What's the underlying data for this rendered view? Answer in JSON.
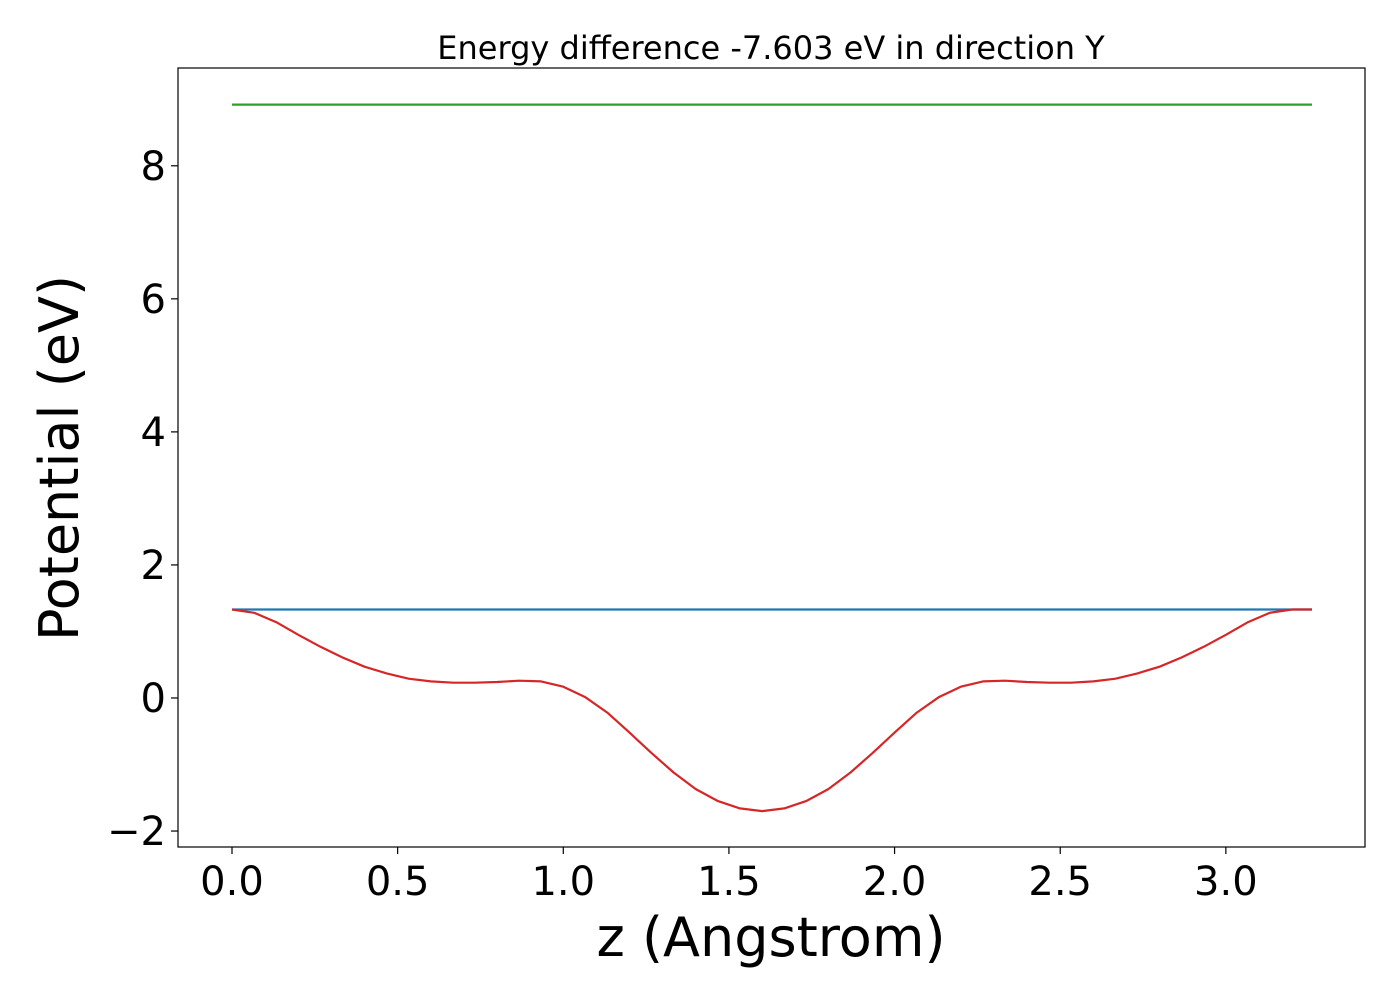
{
  "chart_data": {
    "type": "line",
    "title": "Energy difference -7.603 eV in direction Y",
    "xlabel": "z (Angstrom)",
    "ylabel": "Potential (eV)",
    "xlim": [
      -0.163,
      3.42
    ],
    "ylim": [
      -2.24,
      9.47
    ],
    "x_ticks": [
      0.0,
      0.5,
      1.0,
      1.5,
      2.0,
      2.5,
      3.0
    ],
    "x_tick_labels": [
      "0.0",
      "0.5",
      "1.0",
      "1.5",
      "2.0",
      "2.5",
      "3.0"
    ],
    "y_ticks": [
      -2,
      0,
      2,
      4,
      6,
      8
    ],
    "y_tick_labels": [
      "−2",
      "0",
      "2",
      "4",
      "6",
      "8"
    ],
    "grid": false,
    "legend": "none",
    "series": [
      {
        "color": "#2ca02c",
        "x": [
          0.0,
          3.26
        ],
        "y": [
          8.92,
          8.92
        ]
      },
      {
        "color": "#1f77b4",
        "x": [
          0.0,
          3.26
        ],
        "y": [
          1.33,
          1.33
        ]
      },
      {
        "color": "#d62728",
        "x": [
          0.0,
          0.067,
          0.133,
          0.2,
          0.267,
          0.333,
          0.4,
          0.467,
          0.533,
          0.6,
          0.667,
          0.733,
          0.8,
          0.867,
          0.933,
          1.0,
          1.067,
          1.133,
          1.2,
          1.267,
          1.333,
          1.4,
          1.467,
          1.533,
          1.6,
          1.667,
          1.733,
          1.8,
          1.867,
          1.933,
          2.0,
          2.067,
          2.133,
          2.2,
          2.267,
          2.333,
          2.4,
          2.467,
          2.533,
          2.6,
          2.667,
          2.733,
          2.8,
          2.867,
          2.933,
          3.0,
          3.067,
          3.133,
          3.2,
          3.26
        ],
        "y": [
          1.33,
          1.28,
          1.14,
          0.95,
          0.77,
          0.61,
          0.47,
          0.37,
          0.29,
          0.25,
          0.23,
          0.23,
          0.24,
          0.26,
          0.25,
          0.17,
          0.01,
          -0.22,
          -0.52,
          -0.83,
          -1.12,
          -1.37,
          -1.55,
          -1.66,
          -1.7,
          -1.66,
          -1.55,
          -1.37,
          -1.12,
          -0.83,
          -0.52,
          -0.22,
          0.01,
          0.17,
          0.25,
          0.26,
          0.24,
          0.23,
          0.23,
          0.25,
          0.29,
          0.37,
          0.47,
          0.61,
          0.77,
          0.95,
          1.14,
          1.28,
          1.33,
          1.33
        ]
      }
    ]
  }
}
